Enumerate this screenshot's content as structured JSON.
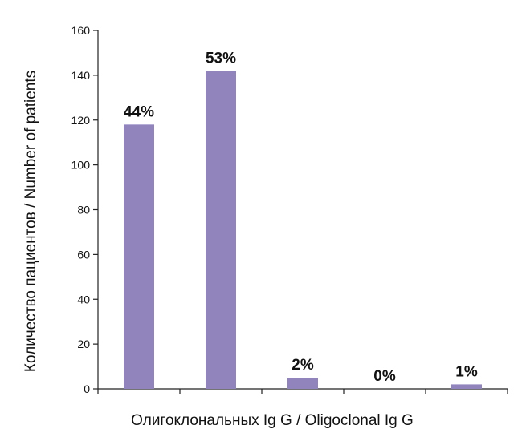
{
  "chart_data": {
    "type": "bar",
    "categories": [
      "",
      "",
      "",
      "",
      ""
    ],
    "values": [
      118,
      142,
      5,
      0,
      2
    ],
    "data_labels": [
      "44%",
      "53%",
      "2%",
      "0%",
      "1%"
    ],
    "title": "",
    "xlabel": "Олигоклональных Ig G / Oligoclonal Ig G",
    "ylabel": "Количество пациентов / Number of patients",
    "ylim": [
      0,
      160
    ],
    "yticks": [
      0,
      20,
      40,
      60,
      80,
      100,
      120,
      140,
      160
    ],
    "grid": false,
    "legend": "none",
    "bar_color": "#9184bd"
  }
}
